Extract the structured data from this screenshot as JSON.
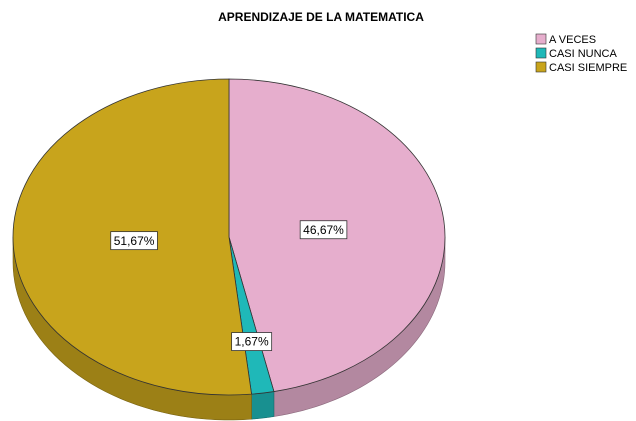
{
  "chart_data": {
    "type": "pie",
    "title": "APRENDIZAJE DE LA MATEMATICA",
    "categories": [
      "A VECES",
      "CASI NUNCA",
      "CASI SIEMPRE"
    ],
    "values": [
      46.67,
      1.67,
      51.67
    ],
    "value_labels": [
      "46,67%",
      "1,67%",
      "51,67%"
    ],
    "colors": [
      "#e6aecd",
      "#1fb8b8",
      "#c8a41c"
    ],
    "legend": "top-right"
  }
}
